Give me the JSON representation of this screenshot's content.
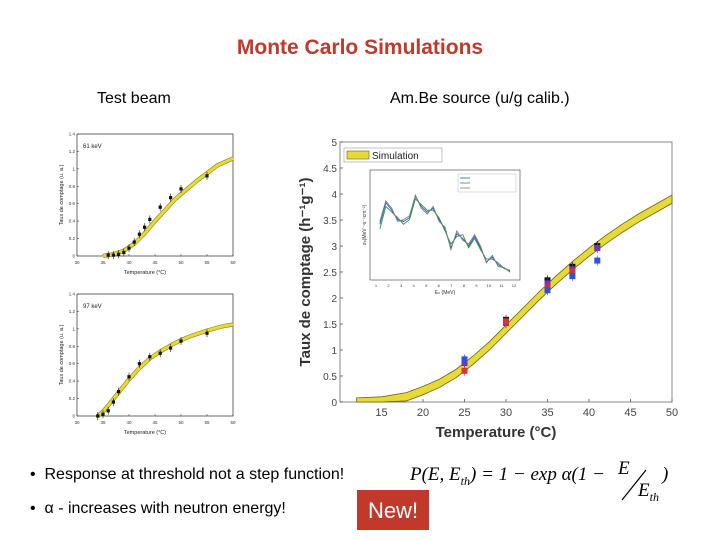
{
  "slide": {
    "title": "Monte Carlo Simulations",
    "left_subtitle": "Test beam",
    "right_subtitle": "Am.Be source (u/g calib.)",
    "bullets": [
      "Response at threshold not a step function!",
      "α - increases with neutron energy!"
    ],
    "new_badge": "New!",
    "formula": {
      "lhs": "P(E, E",
      "lhs_sub": "th",
      "rhs_a": ") = 1 − exp α(1 −",
      "num": "E",
      "den": "E",
      "den_sub": "th",
      "close": ")"
    }
  },
  "chart_data": [
    {
      "type": "scatter",
      "panel": "61 keV",
      "xlabel": "Temperature (°C)",
      "ylabel": "Taux de comptage (u. a.)",
      "xlim": [
        30,
        60
      ],
      "ylim": [
        0,
        1.4
      ],
      "x_ticks": [
        "30",
        "35",
        "40",
        "45",
        "50",
        "55",
        "60"
      ],
      "y_ticks": [
        "0",
        "0.2",
        "0.4",
        "0.6",
        "0.8",
        "1",
        "1.2",
        "1.4"
      ],
      "series": [
        {
          "x": [
            36,
            37,
            38,
            39,
            40,
            41,
            42,
            43,
            44,
            46,
            48,
            50,
            55
          ],
          "y": [
            0.01,
            0.01,
            0.02,
            0.04,
            0.09,
            0.16,
            0.25,
            0.33,
            0.42,
            0.56,
            0.67,
            0.77,
            0.92
          ]
        }
      ],
      "sim": {
        "x": [
          35,
          37,
          39,
          41,
          43,
          45,
          47,
          49,
          51,
          53,
          55,
          57,
          60
        ],
        "y": [
          0.0,
          0.02,
          0.06,
          0.14,
          0.26,
          0.4,
          0.53,
          0.66,
          0.76,
          0.86,
          0.95,
          1.04,
          1.12
        ]
      },
      "colors": {
        "sim": "#e6d93a",
        "data": "#111111"
      }
    },
    {
      "type": "scatter",
      "panel": "97 keV",
      "xlabel": "Temperature (°C)",
      "ylabel": "Taux de comptage (u. a.)",
      "xlim": [
        30,
        60
      ],
      "ylim": [
        0,
        1.4
      ],
      "x_ticks": [
        "30",
        "35",
        "40",
        "45",
        "50",
        "55",
        "60"
      ],
      "y_ticks": [
        "0",
        "0.2",
        "0.4",
        "0.6",
        "0.8",
        "1",
        "1.2",
        "1.4"
      ],
      "series": [
        {
          "x": [
            34,
            35,
            36,
            37,
            38,
            40,
            42,
            44,
            46,
            48,
            50,
            55
          ],
          "y": [
            0.0,
            0.02,
            0.06,
            0.16,
            0.28,
            0.45,
            0.6,
            0.68,
            0.72,
            0.78,
            0.86,
            0.95
          ]
        }
      ],
      "sim": {
        "x": [
          34,
          35,
          36,
          38,
          40,
          42,
          44,
          46,
          48,
          50,
          52,
          55,
          58,
          60
        ],
        "y": [
          0.0,
          0.05,
          0.12,
          0.27,
          0.42,
          0.55,
          0.66,
          0.74,
          0.81,
          0.87,
          0.92,
          0.98,
          1.03,
          1.05
        ]
      },
      "colors": {
        "sim": "#e6d93a",
        "data": "#111111"
      }
    },
    {
      "type": "scatter",
      "xlabel": "Temperature (°C)",
      "ylabel": "Taux de comptage (h⁻¹g⁻¹)",
      "xlim": [
        10,
        50
      ],
      "ylim": [
        0,
        5
      ],
      "x_ticks": [
        "15",
        "20",
        "25",
        "30",
        "35",
        "40",
        "45",
        "50"
      ],
      "y_ticks": [
        "0",
        "0.5",
        "1",
        "1.5",
        "2",
        "2.5",
        "3",
        "3.5",
        "4",
        "4.5",
        "5"
      ],
      "legend": [
        "Simulation"
      ],
      "legend_position": "top-left",
      "sim": {
        "x": [
          12,
          15,
          18,
          20,
          22,
          24,
          26,
          28,
          30,
          32,
          34,
          36,
          38,
          40,
          42,
          44,
          46,
          48,
          50
        ],
        "y": [
          0.0,
          0.02,
          0.1,
          0.22,
          0.36,
          0.55,
          0.8,
          1.08,
          1.4,
          1.72,
          2.04,
          2.34,
          2.62,
          2.88,
          3.12,
          3.34,
          3.54,
          3.72,
          3.9
        ]
      },
      "series": [
        {
          "name": "",
          "color": "#111111",
          "x": [
            25,
            30,
            35,
            38,
            41
          ],
          "y": [
            0.78,
            1.58,
            2.34,
            2.6,
            3.0
          ]
        },
        {
          "name": "",
          "color": "#7b2fbf",
          "x": [
            25,
            30,
            35,
            38,
            41
          ],
          "y": [
            0.75,
            1.52,
            2.28,
            2.55,
            2.96
          ]
        },
        {
          "name": "",
          "color": "#e03030",
          "x": [
            25,
            30,
            35,
            38
          ],
          "y": [
            0.6,
            1.55,
            2.2,
            2.5
          ]
        },
        {
          "name": "",
          "color": "#2d54d6",
          "x": [
            25,
            35,
            38,
            41
          ],
          "y": [
            0.82,
            2.15,
            2.42,
            2.72
          ]
        }
      ],
      "inset": {
        "xlabel": "Eₙ (MeV)",
        "ylabel": "σₙ(MeV⁻¹s⁻¹cm⁻²)",
        "x_ticks": [
          "1",
          "2",
          "3",
          "4",
          "5",
          "6",
          "7",
          "8",
          "9",
          "10",
          "11",
          "12"
        ],
        "series": [
          {
            "color": "#2d54d6",
            "x": [
              0.5,
              1,
              1.5,
              2,
              2.5,
              3,
              3.5,
              4,
              4.5,
              5,
              5.5,
              6,
              6.5,
              7,
              7.5,
              8,
              8.5,
              9,
              9.5,
              10,
              10.5,
              11,
              11.5
            ],
            "y": [
              0.55,
              0.78,
              0.7,
              0.6,
              0.58,
              0.62,
              0.85,
              0.74,
              0.68,
              0.72,
              0.6,
              0.5,
              0.3,
              0.45,
              0.4,
              0.32,
              0.42,
              0.3,
              0.15,
              0.2,
              0.12,
              0.08,
              0.05
            ]
          },
          {
            "color": "#2a9a3a",
            "x": [
              0.5,
              1,
              1.5,
              2,
              2.5,
              3,
              3.5,
              4,
              4.5,
              5,
              5.5,
              6,
              6.5,
              7,
              7.5,
              8,
              8.5,
              9,
              9.5,
              10,
              10.5,
              11,
              11.5
            ],
            "y": [
              0.5,
              0.74,
              0.68,
              0.62,
              0.55,
              0.6,
              0.82,
              0.76,
              0.7,
              0.7,
              0.62,
              0.48,
              0.34,
              0.42,
              0.44,
              0.3,
              0.4,
              0.28,
              0.18,
              0.18,
              0.14,
              0.08,
              0.06
            ]
          },
          {
            "color": "#7a7a7a",
            "x": [
              0.5,
              1,
              1.5,
              2,
              2.5,
              3,
              3.5,
              4,
              4.5,
              5,
              5.5,
              6,
              6.5,
              7,
              7.5,
              8,
              8.5,
              9,
              9.5,
              10,
              10.5,
              11,
              11.5
            ],
            "y": [
              0.58,
              0.8,
              0.72,
              0.58,
              0.6,
              0.64,
              0.86,
              0.72,
              0.66,
              0.74,
              0.58,
              0.52,
              0.28,
              0.48,
              0.38,
              0.34,
              0.44,
              0.32,
              0.14,
              0.22,
              0.1,
              0.09,
              0.04
            ]
          }
        ]
      }
    }
  ]
}
